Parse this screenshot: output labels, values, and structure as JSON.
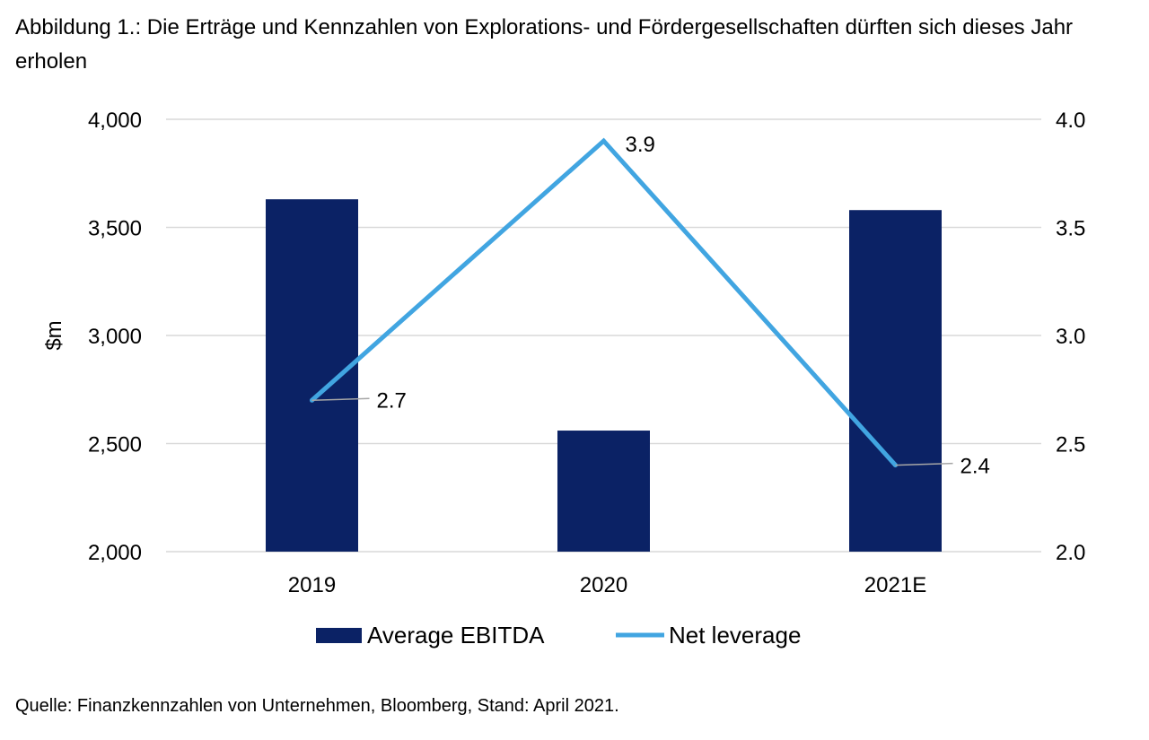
{
  "header": {
    "title": "Abbildung 1.: Die Erträge und Kennzahlen von Explorations- und Fördergesellschaften dürften sich dieses Jahr erholen"
  },
  "footer": {
    "source": "Quelle: Finanzkennzahlen von Unternehmen, Bloomberg, Stand: April 2021."
  },
  "chart_data": {
    "type": "bar",
    "categories": [
      "2019",
      "2020",
      "2021E"
    ],
    "series": [
      {
        "name": "Average EBITDA",
        "kind": "bar",
        "axis": "left",
        "color": "#0b2265",
        "values": [
          3630,
          2560,
          3580
        ]
      },
      {
        "name": "Net leverage",
        "kind": "line",
        "axis": "right",
        "color": "#41a5e1",
        "values": [
          2.7,
          3.9,
          2.4
        ],
        "labels": [
          "2.7",
          "3.9",
          "2.4"
        ]
      }
    ],
    "ylabel": "$m",
    "ylim": [
      2000,
      4000
    ],
    "yticks": [
      "2,000",
      "2,500",
      "3,000",
      "3,500",
      "4,000"
    ],
    "yticks_values": [
      2000,
      2500,
      3000,
      3500,
      4000
    ],
    "y2lim": [
      2.0,
      4.0
    ],
    "y2ticks": [
      "2.0",
      "2.5",
      "3.0",
      "3.5",
      "4.0"
    ],
    "y2ticks_values": [
      2.0,
      2.5,
      3.0,
      3.5,
      4.0
    ],
    "grid": true,
    "legend": "bottom-center"
  }
}
